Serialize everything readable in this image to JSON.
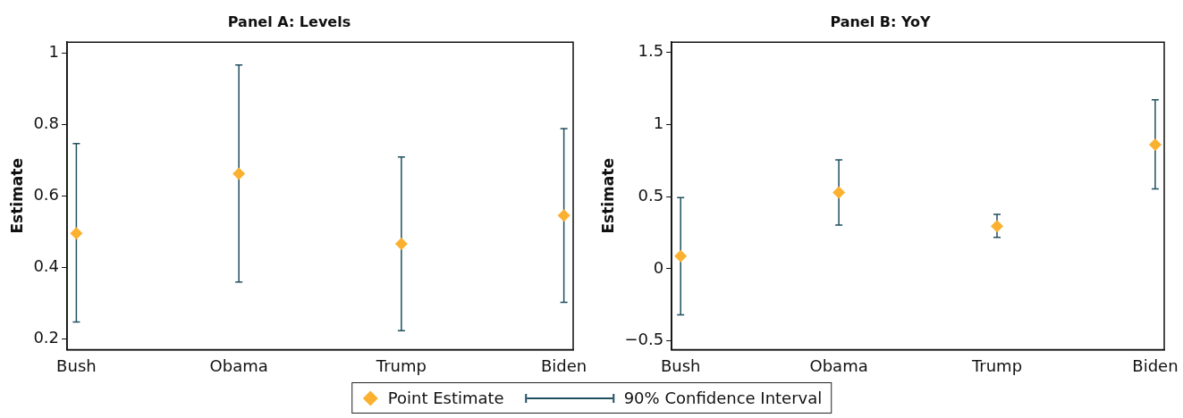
{
  "chart_data": [
    {
      "type": "scatter",
      "title": "Panel A: Levels",
      "ylabel": "Estimate",
      "categories": [
        "Bush",
        "Obama",
        "Trump",
        "Biden"
      ],
      "ylim": [
        0.17,
        1.03
      ],
      "yticks": [
        0.2,
        0.4,
        0.6,
        0.8,
        1
      ],
      "grid": false,
      "marker": "diamond",
      "legend": "bottom",
      "annotations": [
        "90% Confidence Interval"
      ],
      "series": [
        {
          "name": "Point Estimate",
          "color": "#fbb12f",
          "values": [
            0.495,
            0.662,
            0.466,
            0.545
          ],
          "errors": [
            [
              0.247,
              0.746
            ],
            [
              0.359,
              0.966
            ],
            [
              0.223,
              0.709
            ],
            [
              0.302,
              0.788
            ]
          ]
        }
      ]
    },
    {
      "type": "scatter",
      "title": "Panel B: YoY",
      "ylabel": "Estimate",
      "categories": [
        "Bush",
        "Obama",
        "Trump",
        "Biden"
      ],
      "ylim": [
        -0.56,
        1.57
      ],
      "yticks": [
        {
          "value": -0.5,
          "label": "−0.5"
        },
        0,
        0.5,
        1,
        1.5
      ],
      "grid": false,
      "marker": "diamond",
      "series": [
        {
          "color": "#fbb12f",
          "values": [
            0.088,
            0.529,
            0.295,
            0.86
          ],
          "errors": [
            [
              -0.32,
              0.493
            ],
            [
              0.303,
              0.755
            ],
            [
              0.218,
              0.377
            ],
            [
              0.554,
              1.17
            ]
          ]
        }
      ]
    }
  ]
}
